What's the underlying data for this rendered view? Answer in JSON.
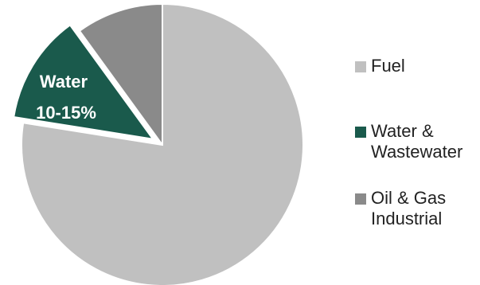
{
  "chart_data": {
    "type": "pie",
    "title": "",
    "slices": [
      {
        "label": "Fuel",
        "value": 77.5,
        "color": "#c0c0c0",
        "exploded": false,
        "slice_label": ""
      },
      {
        "label": "Water & Wastewater",
        "value": 12.5,
        "color": "#1a5a4c",
        "exploded": true,
        "slice_label": "Water 10-15%"
      },
      {
        "label": "Oil & Gas Industrial",
        "value": 10,
        "color": "#8a8a8a",
        "exploded": false,
        "slice_label": ""
      }
    ],
    "legend_entries": [
      "Fuel",
      "Water &\nWastewater",
      "Oil & Gas\nIndustrial"
    ],
    "slice_label_lines": [
      "Water",
      "10-15%"
    ],
    "legend_position": "right"
  }
}
